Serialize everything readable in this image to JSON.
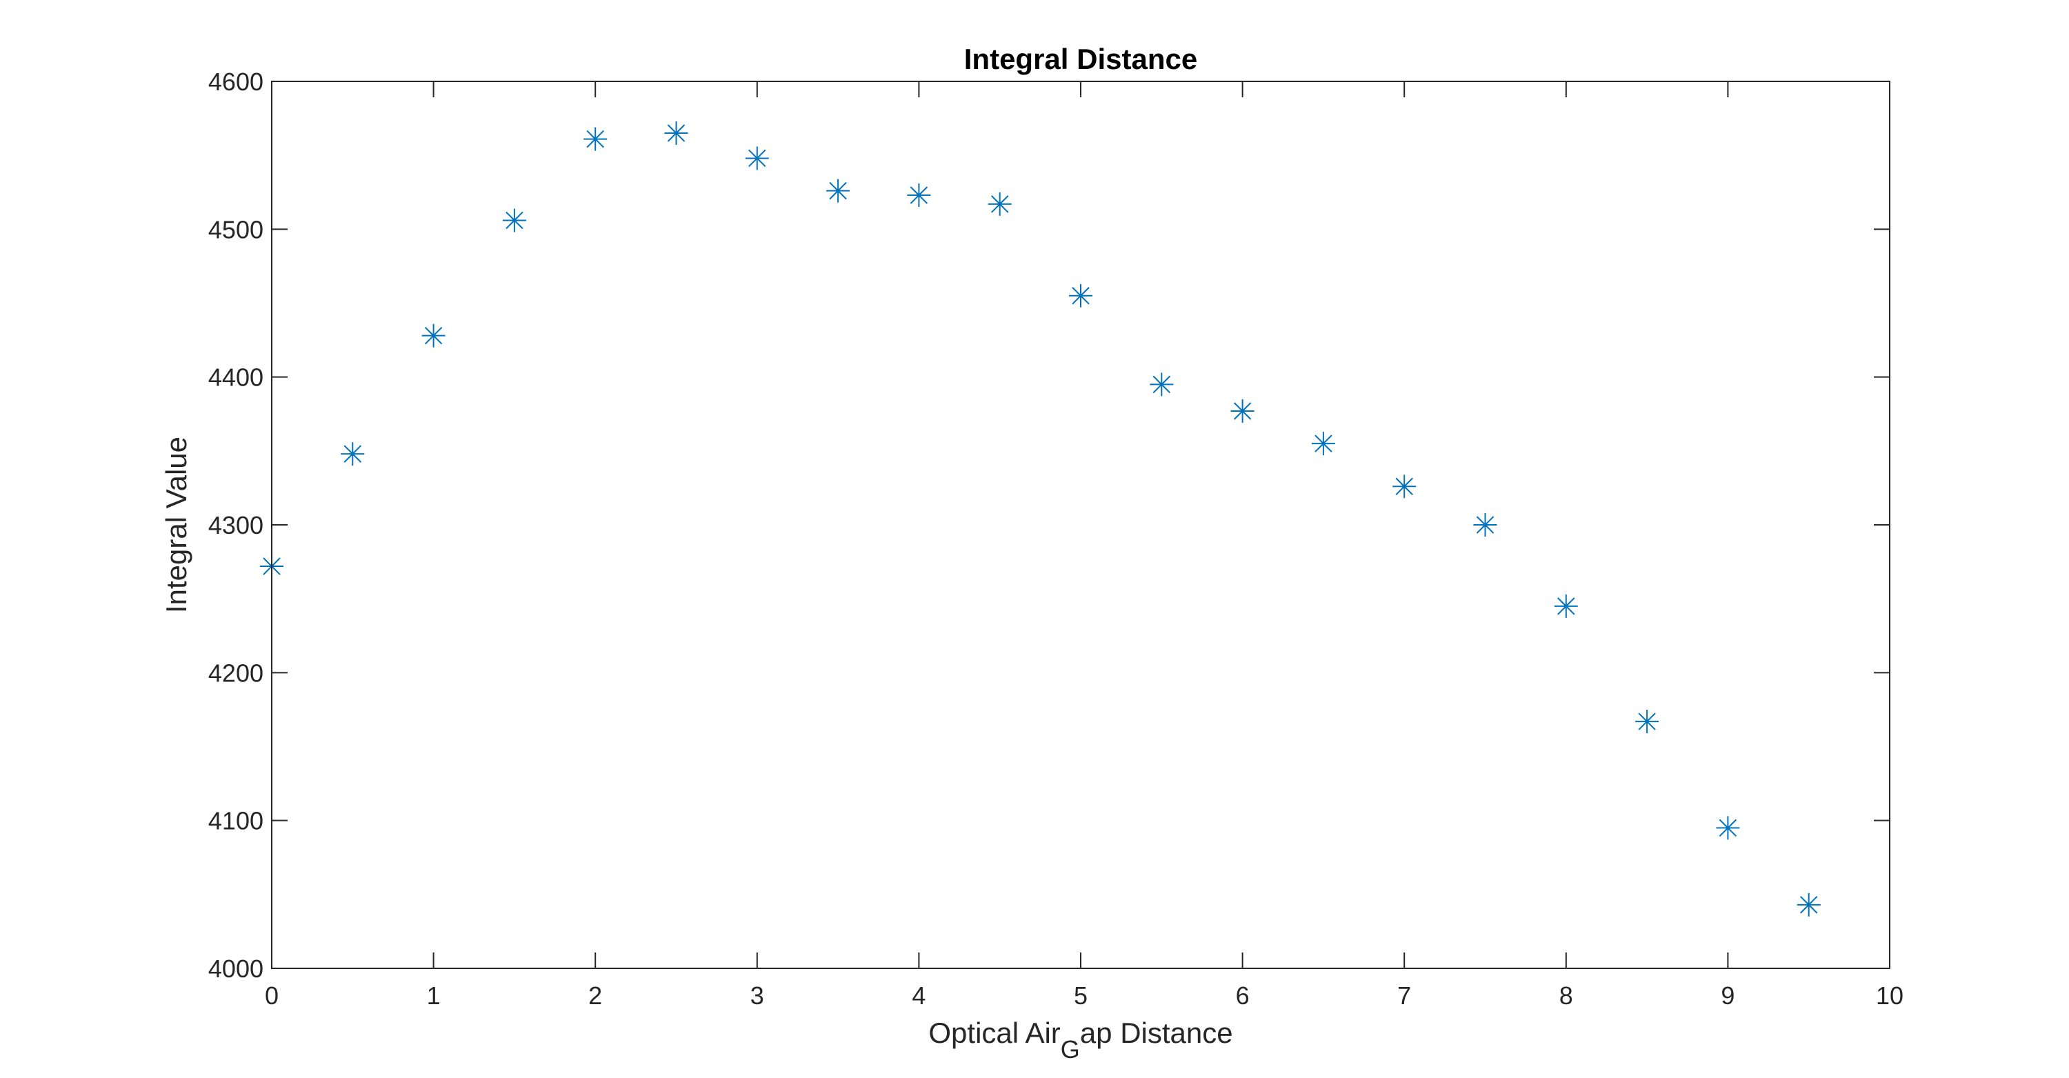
{
  "chart_data": {
    "type": "scatter",
    "title": "Integral Distance",
    "xlabel": {
      "prefix": "Optical Air",
      "subscript": "G",
      "suffix": "ap Distance"
    },
    "ylabel": "Integral Value",
    "xlim": [
      0,
      10
    ],
    "ylim": [
      4000,
      4600
    ],
    "xticks": [
      0,
      1,
      2,
      3,
      4,
      5,
      6,
      7,
      8,
      9,
      10
    ],
    "yticks": [
      4000,
      4100,
      4200,
      4300,
      4400,
      4500,
      4600
    ],
    "grid": false,
    "marker": "asterisk",
    "marker_color": "#0072BD",
    "series": [
      {
        "x": [
          0,
          0.5,
          1,
          1.5,
          2,
          2.5,
          3,
          3.5,
          4,
          4.5,
          5,
          5.5,
          6,
          6.5,
          7,
          7.5,
          8,
          8.5,
          9,
          9.5
        ],
        "y": [
          4272,
          4348,
          4428,
          4506,
          4561,
          4565,
          4548,
          4526,
          4523,
          4517,
          4455,
          4395,
          4377,
          4355,
          4326,
          4300,
          4245,
          4167,
          4095,
          4043
        ]
      }
    ]
  }
}
